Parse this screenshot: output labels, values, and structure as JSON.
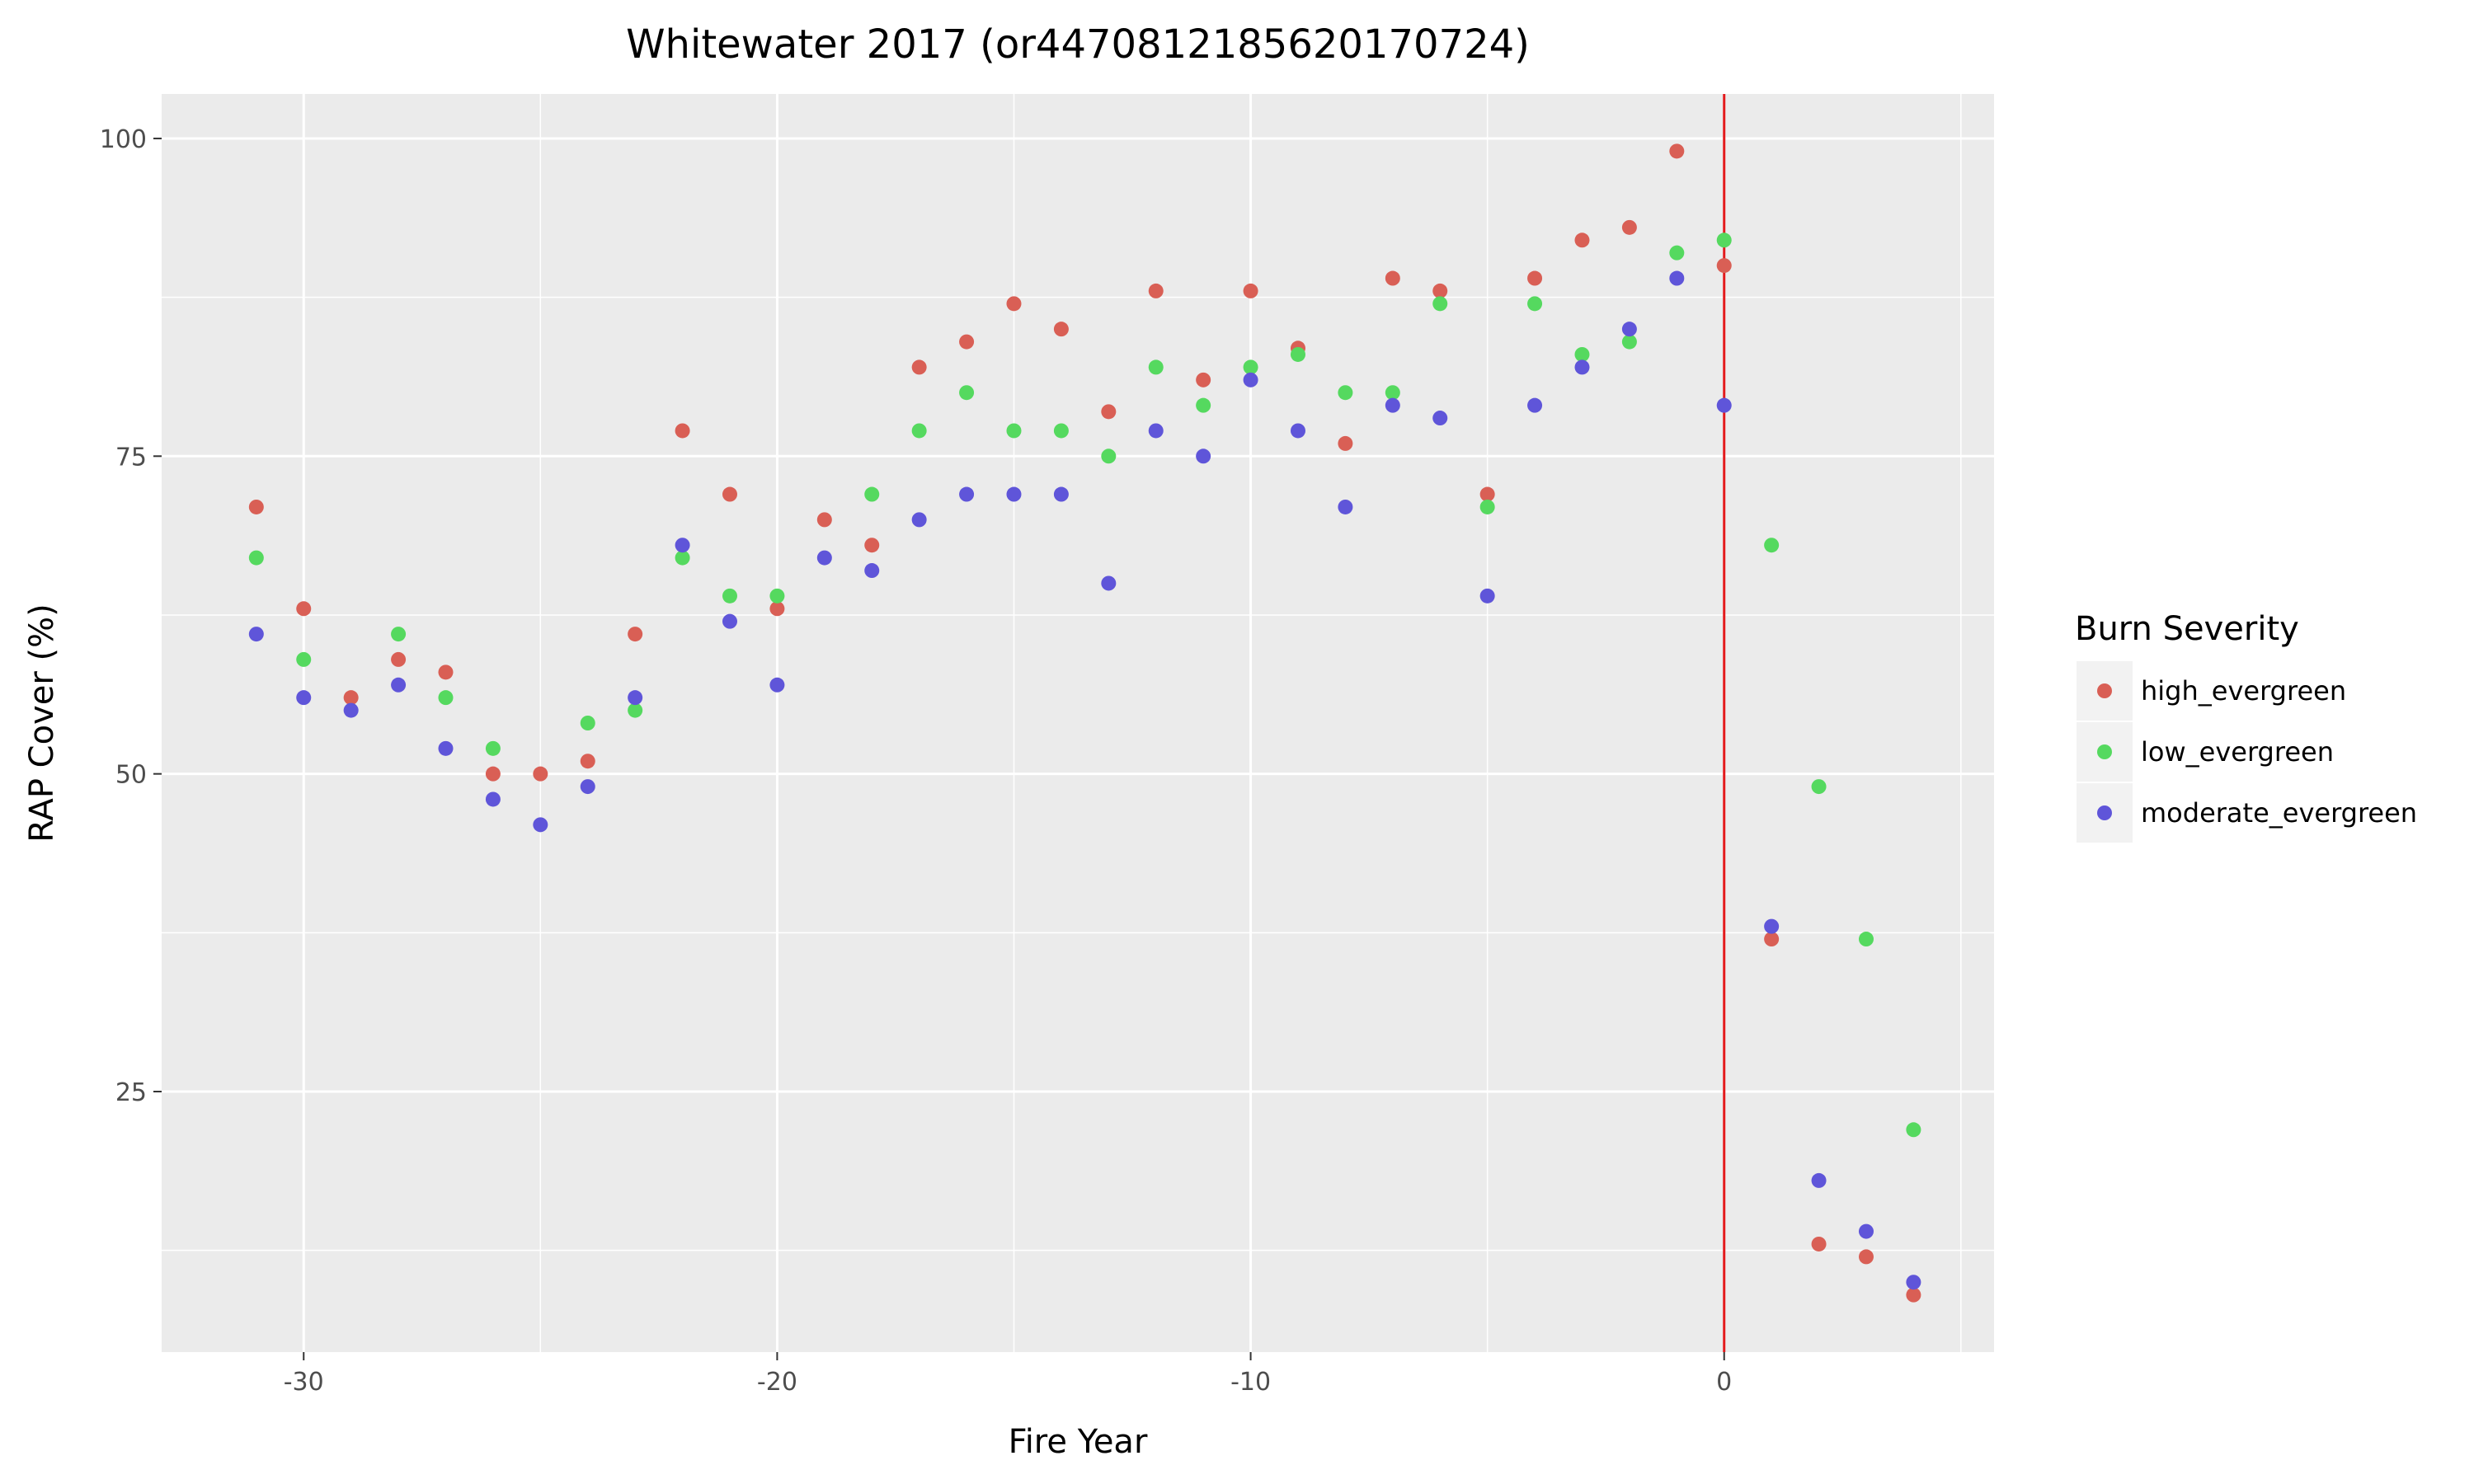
{
  "chart_data": {
    "type": "scatter",
    "title": "Whitewater 2017 (or4470812185620170724)",
    "xlabel": "Fire Year",
    "ylabel": "RAP Cover (%)",
    "xlim": [
      -33,
      5.7
    ],
    "ylim": [
      4.5,
      103.5
    ],
    "xticks": [
      -30,
      -20,
      -10,
      0
    ],
    "yticks": [
      25,
      50,
      75,
      100
    ],
    "grid": true,
    "vline": {
      "x": 0,
      "color": "#e31a1c"
    },
    "legend": {
      "title": "Burn Severity",
      "placement": "right"
    },
    "series": [
      {
        "name": "high_evergreen",
        "color": "#d95f55",
        "points": [
          [
            -31,
            71
          ],
          [
            -30,
            63
          ],
          [
            -29,
            56
          ],
          [
            -28,
            59
          ],
          [
            -27,
            58
          ],
          [
            -26,
            50
          ],
          [
            -25,
            50
          ],
          [
            -24,
            51
          ],
          [
            -23,
            61
          ],
          [
            -22,
            77
          ],
          [
            -21,
            72
          ],
          [
            -20,
            63
          ],
          [
            -19,
            70
          ],
          [
            -18,
            68
          ],
          [
            -17,
            82
          ],
          [
            -16,
            84
          ],
          [
            -15,
            87
          ],
          [
            -14,
            85
          ],
          [
            -13,
            78.5
          ],
          [
            -12,
            88
          ],
          [
            -11,
            81
          ],
          [
            -10,
            88
          ],
          [
            -9,
            83.5
          ],
          [
            -8,
            76
          ],
          [
            -7,
            89
          ],
          [
            -6,
            88
          ],
          [
            -5,
            72
          ],
          [
            -4,
            89
          ],
          [
            -3,
            92
          ],
          [
            -2,
            93
          ],
          [
            -1,
            99
          ],
          [
            0,
            90
          ],
          [
            1,
            37
          ],
          [
            2,
            13
          ],
          [
            3,
            12
          ],
          [
            4,
            9
          ]
        ]
      },
      {
        "name": "low_evergreen",
        "color": "#55d95f",
        "points": [
          [
            -31,
            67
          ],
          [
            -30,
            59
          ],
          [
            -28,
            61
          ],
          [
            -27,
            56
          ],
          [
            -26,
            52
          ],
          [
            -24,
            54
          ],
          [
            -23,
            55
          ],
          [
            -22,
            67
          ],
          [
            -21,
            64
          ],
          [
            -20,
            64
          ],
          [
            -18,
            72
          ],
          [
            -17,
            77
          ],
          [
            -16,
            80
          ],
          [
            -15,
            77
          ],
          [
            -14,
            77
          ],
          [
            -13,
            75
          ],
          [
            -12,
            82
          ],
          [
            -11,
            79
          ],
          [
            -10,
            82
          ],
          [
            -9,
            83
          ],
          [
            -8,
            80
          ],
          [
            -7,
            80
          ],
          [
            -6,
            87
          ],
          [
            -5,
            71
          ],
          [
            -4,
            87
          ],
          [
            -3,
            83
          ],
          [
            -2,
            84
          ],
          [
            -1,
            91
          ],
          [
            0,
            92
          ],
          [
            1,
            68
          ],
          [
            2,
            49
          ],
          [
            3,
            37
          ],
          [
            4,
            22
          ]
        ]
      },
      {
        "name": "moderate_evergreen",
        "color": "#5f55d9",
        "points": [
          [
            -31,
            61
          ],
          [
            -30,
            56
          ],
          [
            -29,
            55
          ],
          [
            -28,
            57
          ],
          [
            -27,
            52
          ],
          [
            -26,
            48
          ],
          [
            -25,
            46
          ],
          [
            -24,
            49
          ],
          [
            -23,
            56
          ],
          [
            -22,
            68
          ],
          [
            -21,
            62
          ],
          [
            -20,
            57
          ],
          [
            -19,
            67
          ],
          [
            -18,
            66
          ],
          [
            -17,
            70
          ],
          [
            -16,
            72
          ],
          [
            -15,
            72
          ],
          [
            -14,
            72
          ],
          [
            -13,
            65
          ],
          [
            -12,
            77
          ],
          [
            -11,
            75
          ],
          [
            -10,
            81
          ],
          [
            -9,
            77
          ],
          [
            -8,
            71
          ],
          [
            -7,
            79
          ],
          [
            -6,
            78
          ],
          [
            -5,
            64
          ],
          [
            -4,
            79
          ],
          [
            -3,
            82
          ],
          [
            -2,
            85
          ],
          [
            -1,
            89
          ],
          [
            0,
            79
          ],
          [
            1,
            38
          ],
          [
            2,
            18
          ],
          [
            3,
            14
          ],
          [
            4,
            10
          ]
        ]
      }
    ]
  }
}
